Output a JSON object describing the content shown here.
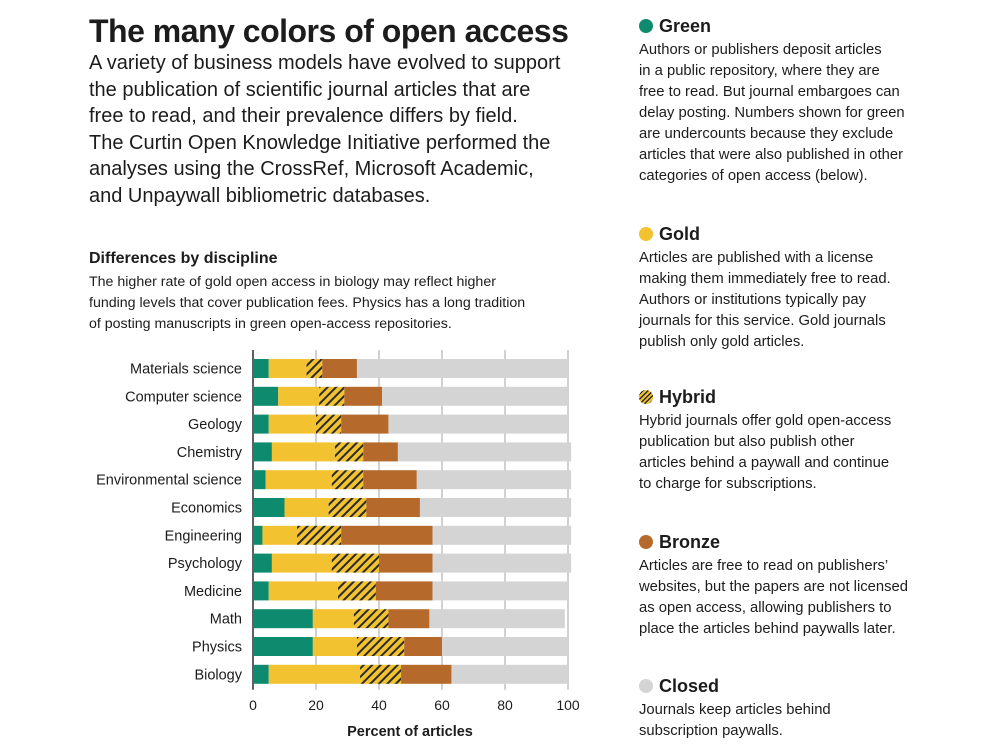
{
  "title": "The many colors of open access",
  "intro_lines": [
    "A variety of business models have evolved to support",
    "the publication of scientific journal articles that are",
    "free to read, and their prevalence differs by field.",
    "The Curtin Open Knowledge Initiative performed the",
    "analyses using the CrossRef, Microsoft Academic,",
    "and Unpaywall bibliometric databases."
  ],
  "subsection": {
    "title": "Differences by discipline",
    "lines": [
      "The higher rate of gold open access in biology may reflect higher",
      "funding levels that cover publication fees. Physics has a long tradition",
      "of posting manuscripts in green open-access repositories."
    ]
  },
  "colors": {
    "green": "#0e8a6e",
    "gold": "#f2c230",
    "bronze": "#b56a2c",
    "closed": "#d4d4d4",
    "hatch": "#2a2a2a"
  },
  "legend": [
    {
      "key": "green",
      "name": "Green",
      "lines": [
        "Authors or publishers deposit articles",
        "in a public repository, where they are",
        "free to read. But journal embargoes can",
        "delay posting. Numbers shown for green",
        "are undercounts because they exclude",
        "articles that were also published in other",
        "categories of open access (below)."
      ]
    },
    {
      "key": "gold",
      "name": "Gold",
      "lines": [
        "Articles are published with a license",
        "making them immediately free to read.",
        "Authors or institutions typically pay",
        "journals for this service. Gold journals",
        "publish only gold articles."
      ]
    },
    {
      "key": "hybrid",
      "name": "Hybrid",
      "lines": [
        "Hybrid journals offer gold open-access",
        "publication but also publish other",
        "articles behind a paywall and continue",
        "to charge for subscriptions."
      ]
    },
    {
      "key": "bronze",
      "name": "Bronze",
      "lines": [
        "Articles are free to read on publishers’",
        "websites, but the papers are not licensed",
        "as open access, allowing publishers to",
        "place the articles behind paywalls later."
      ]
    },
    {
      "key": "closed",
      "name": "Closed",
      "lines": [
        "Journals keep articles behind",
        "subscription paywalls."
      ]
    }
  ],
  "chart_data": {
    "type": "bar",
    "orientation": "horizontal",
    "stacked": true,
    "title": "Differences by discipline",
    "xlabel": "Percent of articles",
    "ylabel": "",
    "xlim": [
      0,
      100
    ],
    "xticks": [
      0,
      20,
      40,
      60,
      80,
      100
    ],
    "grid": true,
    "categories": [
      "Materials science",
      "Computer science",
      "Geology",
      "Chemistry",
      "Environmental science",
      "Economics",
      "Engineering",
      "Psychology",
      "Medicine",
      "Math",
      "Physics",
      "Biology"
    ],
    "series": [
      {
        "name": "Green",
        "key": "green",
        "values": [
          5,
          8,
          5,
          6,
          4,
          10,
          3,
          6,
          5,
          19,
          19,
          5
        ]
      },
      {
        "name": "Gold",
        "key": "gold",
        "values": [
          12,
          13,
          15,
          20,
          21,
          14,
          11,
          19,
          22,
          13,
          14,
          29
        ]
      },
      {
        "name": "Hybrid",
        "key": "hybrid",
        "values": [
          5,
          8,
          8,
          9,
          10,
          12,
          14,
          15,
          12,
          11,
          15,
          13
        ]
      },
      {
        "name": "Bronze",
        "key": "bronze",
        "values": [
          11,
          12,
          15,
          11,
          17,
          17,
          29,
          17,
          18,
          13,
          12,
          16
        ]
      },
      {
        "name": "Closed",
        "key": "closed",
        "values": [
          67,
          59,
          57,
          55,
          49,
          48,
          44,
          44,
          43,
          43,
          40,
          37
        ]
      }
    ]
  }
}
